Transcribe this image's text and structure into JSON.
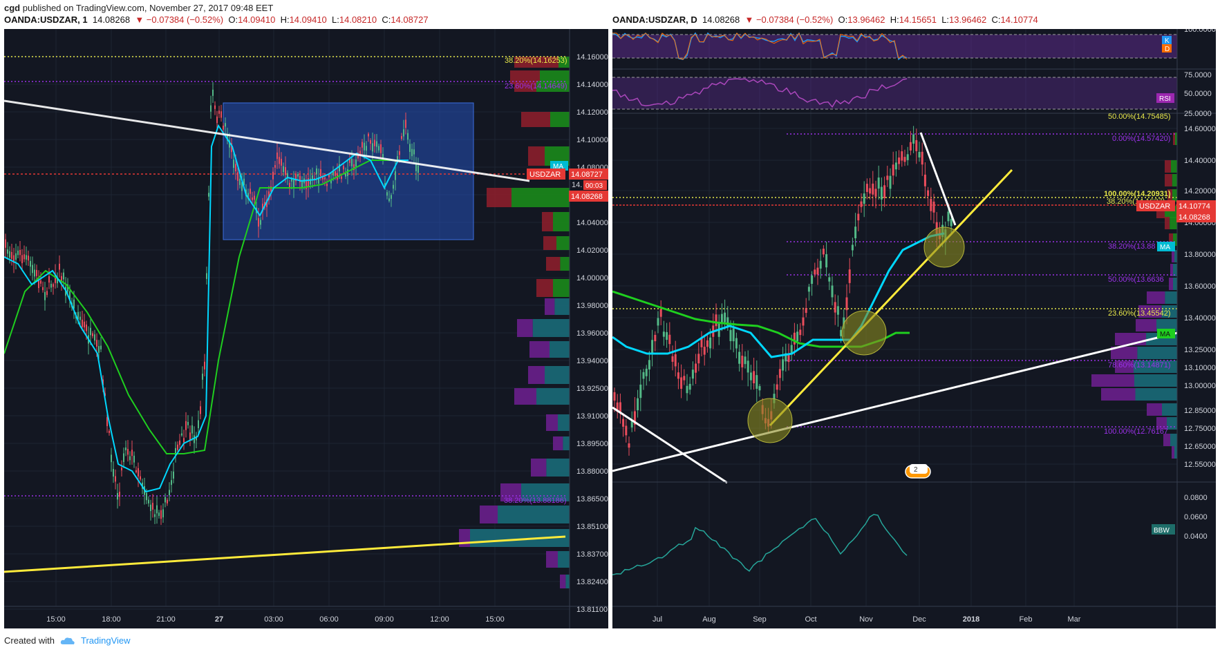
{
  "header": {
    "user": "cgd",
    "published": "published on TradingView.com, November 27, 2017 09:48 EET"
  },
  "left_chart": {
    "symbol": "OANDA:USDZAR, 1",
    "price": "14.08268",
    "change": "▼ −0.07384 (−0.52%)",
    "o_label": "O:",
    "o": "14.09410",
    "h_label": "H:",
    "h": "14.09410",
    "l_label": "L:",
    "l": "14.08210",
    "c_label": "C:",
    "c": "14.08727",
    "y_ticks": [
      "14.16000",
      "14.14000",
      "14.12000",
      "14.10000",
      "14.08000",
      "14.06000",
      "14.04000",
      "14.02000",
      "14.00000",
      "13.98000",
      "13.96000",
      "13.94000",
      "13.92500",
      "13.91000",
      "13.89500",
      "13.88000",
      "13.86500",
      "13.85100",
      "13.83700",
      "13.82400",
      "13.81100"
    ],
    "x_ticks": [
      "15:00",
      "18:00",
      "21:00",
      "27",
      "03:00",
      "06:00",
      "09:00",
      "12:00",
      "15:00"
    ],
    "fib_382": "38.20%(14.16253)",
    "fib_236": "23.60%(14.14649)",
    "fib_lower": "38.20%(13.88186)",
    "badge_symbol": "USDZAR",
    "badge_price": "14.08727",
    "badge_timer": "00:03",
    "badge_close": "14.08268",
    "badge_ma": "MA",
    "badge_clip": "14."
  },
  "right_chart": {
    "symbol": "OANDA:USDZAR, D",
    "price": "14.08268",
    "change": "▼ −0.07384 (−0.52%)",
    "o_label": "O:",
    "o": "13.96462",
    "h_label": "H:",
    "h": "14.15651",
    "l_label": "L:",
    "l": "13.96462",
    "c_label": "C:",
    "c": "14.10774",
    "y_ticks_main": [
      "14.60000",
      "14.40000",
      "14.20000",
      "14.00000",
      "13.80000",
      "13.60000",
      "13.40000",
      "13.25000",
      "13.10000",
      "13.00000",
      "12.85000",
      "12.75000",
      "12.65000",
      "12.55000"
    ],
    "y_ticks_stoch": [
      "100.0000"
    ],
    "y_ticks_rsi": [
      "75.0000",
      "50.0000",
      "25.0000"
    ],
    "y_ticks_bbw": [
      "0.0800",
      "0.0600",
      "0.0400"
    ],
    "x_ticks": [
      "Jul",
      "Aug",
      "Sep",
      "Oct",
      "Nov",
      "Dec",
      "2018",
      "Feb",
      "Mar"
    ],
    "fib_0": "0.00%(14.57420)",
    "fib_100": "100.00%(14.20931)",
    "fib_382a": "38.20%(14.1637)",
    "fib_382b": "38.20%(13.88",
    "fib_50": "50.00%(13.6636",
    "fib_236": "23.60%(13.45542)",
    "fib_786": "78.60%(13.14871)",
    "fib_100b": "100.00%(12.76167",
    "fib_top_clip": "50.00%(14.75485)",
    "badge_symbol": "USDZAR",
    "badge_price": "14.10774",
    "badge_close": "14.08268",
    "badge_ma1": "MA",
    "badge_ma2": "MA",
    "badge_k": "K",
    "badge_d": "D",
    "badge_rsi": "RSI",
    "badge_bbw": "BBW",
    "event_count": "2"
  },
  "footer": {
    "created": "Created with",
    "brand": "TradingView"
  },
  "colors": {
    "bg": "#131722",
    "up": "#53b987",
    "down": "#eb4d5c",
    "ma_cyan": "#00d8ff",
    "ma_green": "#1fcf1f",
    "fib_yellow": "#e8e84a",
    "fib_purple": "#9b31e8",
    "trend_yellow": "#ffeb3b"
  }
}
